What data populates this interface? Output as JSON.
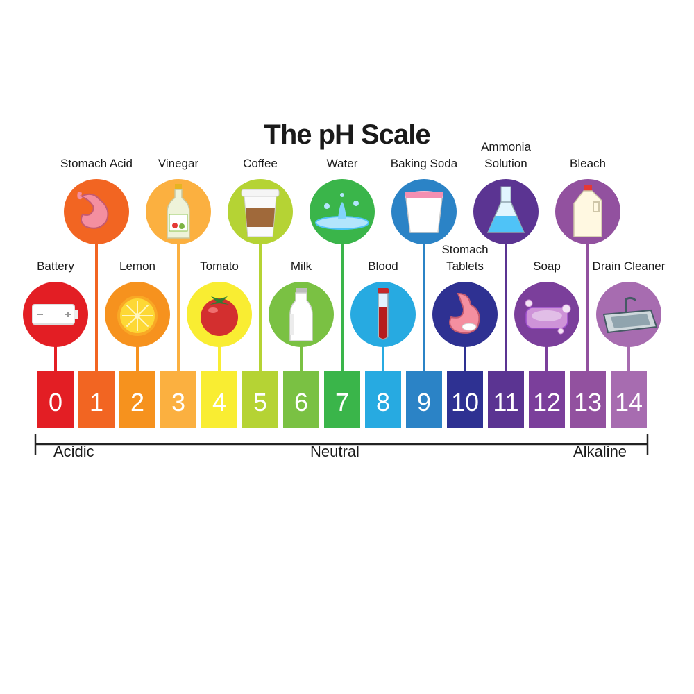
{
  "title": "The pH Scale",
  "scale": {
    "numbers": [
      "0",
      "1",
      "2",
      "3",
      "4",
      "5",
      "6",
      "7",
      "8",
      "9",
      "10",
      "11",
      "12",
      "13",
      "14"
    ],
    "colors": [
      "#e31e24",
      "#f26522",
      "#f6921e",
      "#fbb040",
      "#f9ed32",
      "#b5d334",
      "#7ac143",
      "#3ab54a",
      "#27aae1",
      "#2b83c6",
      "#2e3192",
      "#5b3492",
      "#7b3f9b",
      "#92519f",
      "#a76cb0"
    ]
  },
  "items": [
    {
      "ph": 0,
      "label": "Battery",
      "row": "low",
      "color": "#e31e24",
      "icon": "battery-icon"
    },
    {
      "ph": 1,
      "label": "Stomach Acid",
      "row": "high",
      "color": "#f26522",
      "icon": "stomach-icon"
    },
    {
      "ph": 2,
      "label": "Lemon",
      "row": "low",
      "color": "#f6921e",
      "icon": "lemon-icon"
    },
    {
      "ph": 3,
      "label": "Vinegar",
      "row": "high",
      "color": "#fbb040",
      "icon": "vinegar-bottle-icon"
    },
    {
      "ph": 4,
      "label": "Tomato",
      "row": "low",
      "color": "#f9ed32",
      "icon": "tomato-icon"
    },
    {
      "ph": 5,
      "label": "Coffee",
      "row": "high",
      "color": "#b5d334",
      "icon": "coffee-cup-icon"
    },
    {
      "ph": 6,
      "label": "Milk",
      "row": "low",
      "color": "#7ac143",
      "icon": "milk-bottle-icon"
    },
    {
      "ph": 7,
      "label": "Water",
      "row": "high",
      "color": "#3ab54a",
      "icon": "water-splash-icon"
    },
    {
      "ph": 8,
      "label": "Blood",
      "row": "low",
      "color": "#27aae1",
      "icon": "blood-tube-icon"
    },
    {
      "ph": 9,
      "label": "Baking Soda",
      "row": "high",
      "color": "#2b83c6",
      "icon": "baking-soda-icon"
    },
    {
      "ph": 10,
      "label": "Stomach Tablets",
      "label_lines": [
        "Stomach",
        "Tablets"
      ],
      "row": "low",
      "color": "#2e3192",
      "icon": "stomach-tablet-icon"
    },
    {
      "ph": 11,
      "label": "Ammonia Solution",
      "label_lines": [
        "Ammonia",
        "Solution"
      ],
      "row": "high",
      "color": "#5b3492",
      "icon": "flask-icon"
    },
    {
      "ph": 12,
      "label": "Soap",
      "row": "low",
      "color": "#7b3f9b",
      "icon": "soap-icon"
    },
    {
      "ph": 13,
      "label": "Bleach",
      "row": "high",
      "color": "#92519f",
      "icon": "bleach-jug-icon"
    },
    {
      "ph": 14,
      "label": "Drain Cleaner",
      "row": "low",
      "color": "#a76cb0",
      "icon": "sink-icon"
    }
  ],
  "axis": {
    "left": "Acidic",
    "middle": "Neutral",
    "right": "Alkaline"
  }
}
